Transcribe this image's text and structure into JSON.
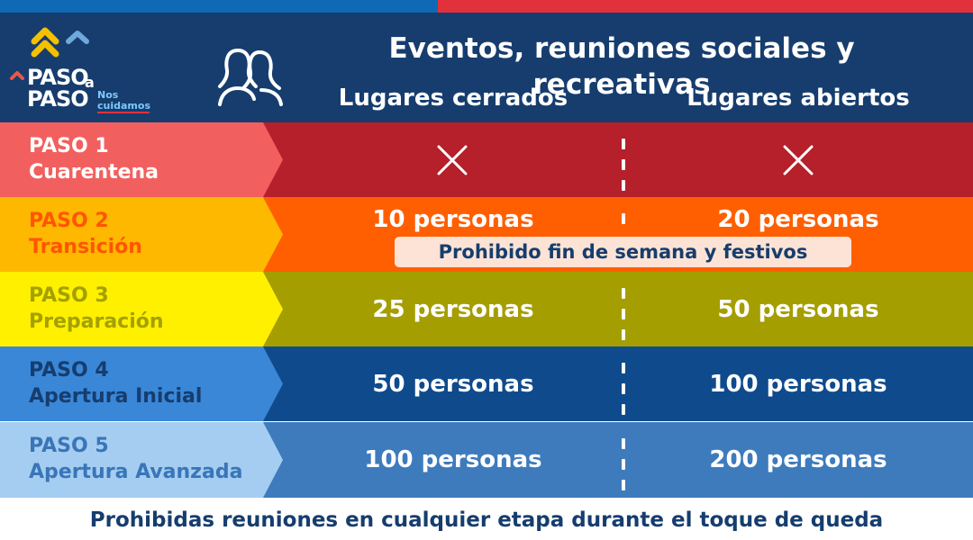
{
  "header": {
    "title": "Eventos, reuniones sociales y recreativas",
    "column_closed": "Lugares cerrados",
    "column_open": "Lugares abiertos"
  },
  "logo": {
    "line1": "PASO",
    "a": "a",
    "line2": "PASO",
    "tag1": "Nos",
    "tag2": "cuidamos"
  },
  "rows": [
    {
      "step": "PASO 1",
      "name": "Cuarentena",
      "closed": "",
      "open": "",
      "closed_icon": "x-icon",
      "open_icon": "x-icon",
      "label_bg": "#f1605f",
      "label_color": "#ffffff",
      "row_bg": "#b5202a"
    },
    {
      "step": "PASO 2",
      "name": "Transición",
      "closed": "10 personas",
      "open": "20 personas",
      "note": "Prohibido fin de semana y festivos",
      "label_bg": "#ffb800",
      "label_color": "#ff5500",
      "row_bg": "#ff5f00"
    },
    {
      "step": "PASO 3",
      "name": "Preparación",
      "closed": "25 personas",
      "open": "50 personas",
      "label_bg": "#fff000",
      "label_color": "#a3a000",
      "row_bg": "#a59e00"
    },
    {
      "step": "PASO 4",
      "name": "Apertura Inicial",
      "closed": "50 personas",
      "open": "100 personas",
      "label_bg": "#3a87d8",
      "label_color": "#163d6e",
      "row_bg": "#0f4b8c"
    },
    {
      "step": "PASO 5",
      "name": "Apertura Avanzada",
      "closed": "100 personas",
      "open": "200 personas",
      "label_bg": "#a4cdf1",
      "label_color": "#3975b8",
      "row_bg": "#3e7bbd"
    }
  ],
  "footer": "Prohibidas reuniones en cualquier etapa durante el toque de queda"
}
